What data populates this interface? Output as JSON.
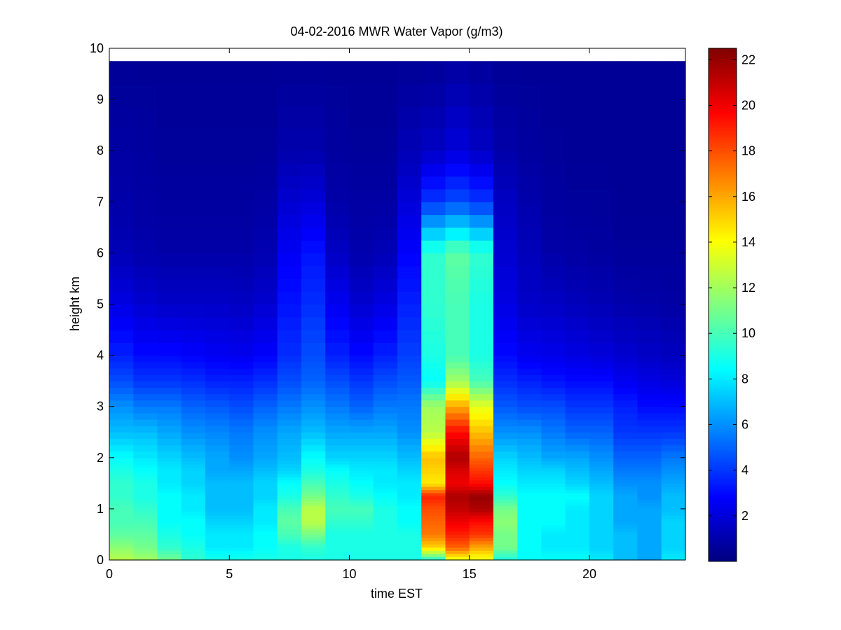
{
  "chart_data": {
    "type": "heatmap",
    "title": "04-02-2016 MWR Water Vapor (g/m3)",
    "xlabel": "time EST",
    "ylabel": "height km",
    "xlim": [
      0,
      24
    ],
    "ylim": [
      0,
      10
    ],
    "x_ticks": [
      "0",
      "5",
      "10",
      "15",
      "20"
    ],
    "x_tick_values": [
      0,
      5,
      10,
      15,
      20
    ],
    "y_ticks": [
      "0",
      "1",
      "2",
      "3",
      "4",
      "5",
      "6",
      "7",
      "8",
      "9",
      "10"
    ],
    "y_tick_values": [
      0,
      1,
      2,
      3,
      4,
      5,
      6,
      7,
      8,
      9,
      10
    ],
    "colorbar": {
      "colormap": "jet",
      "range": [
        0,
        22.5
      ],
      "ticks": [
        "2",
        "4",
        "6",
        "8",
        "10",
        "12",
        "14",
        "16",
        "18",
        "20",
        "22"
      ],
      "tick_values": [
        2,
        4,
        6,
        8,
        10,
        12,
        14,
        16,
        18,
        20,
        22
      ]
    },
    "time_columns_hours": [
      0.5,
      1.5,
      2.5,
      3.5,
      4.5,
      5.5,
      6.5,
      7.5,
      8.5,
      9.5,
      10.5,
      11.5,
      12.5,
      13.5,
      14.5,
      15.5,
      16.5,
      17.5,
      18.5,
      19.5,
      20.5,
      21.5,
      22.5,
      23.5
    ],
    "height_levels_km": [
      0,
      0.25,
      0.5,
      0.75,
      1.0,
      1.25,
      1.5,
      1.75,
      2.0,
      2.5,
      3.0,
      3.5,
      4.0,
      5.0,
      6.0,
      7.0,
      8.0,
      9.75
    ],
    "water_vapor_profiles": [
      [
        12.5,
        11.5,
        10.5,
        10.0,
        10.0,
        9.5,
        9.5,
        9.0,
        8.5,
        7.0,
        6.0,
        4.5,
        3.5,
        2.2,
        1.2,
        0.9,
        0.8,
        0.5
      ],
      [
        12.0,
        11.0,
        10.5,
        10.0,
        9.5,
        9.0,
        9.0,
        8.5,
        8.0,
        7.0,
        5.5,
        4.0,
        3.0,
        1.8,
        1.0,
        0.8,
        0.7,
        0.5
      ],
      [
        11.0,
        9.5,
        9.0,
        8.5,
        8.5,
        8.5,
        8.0,
        8.0,
        7.5,
        6.5,
        5.5,
        4.0,
        3.0,
        1.6,
        0.9,
        0.7,
        0.6,
        0.5
      ],
      [
        9.5,
        9.0,
        8.5,
        8.5,
        8.0,
        8.0,
        7.5,
        7.5,
        7.0,
        6.0,
        5.0,
        3.8,
        2.8,
        1.6,
        0.9,
        0.7,
        0.6,
        0.5
      ],
      [
        9.0,
        8.0,
        8.0,
        7.5,
        7.0,
        7.0,
        7.0,
        6.5,
        6.5,
        5.8,
        4.8,
        3.5,
        2.6,
        1.6,
        0.9,
        0.7,
        0.6,
        0.5
      ],
      [
        9.0,
        8.0,
        8.0,
        7.5,
        7.0,
        7.0,
        7.0,
        6.5,
        6.0,
        5.5,
        4.5,
        3.5,
        2.5,
        1.5,
        0.9,
        0.7,
        0.6,
        0.5
      ],
      [
        9.0,
        8.5,
        8.5,
        8.0,
        8.0,
        7.5,
        7.5,
        7.0,
        6.5,
        6.0,
        5.0,
        3.8,
        2.8,
        1.8,
        1.1,
        0.8,
        0.6,
        0.5
      ],
      [
        9.0,
        9.0,
        10.0,
        10.5,
        10.0,
        9.0,
        8.5,
        7.5,
        7.0,
        6.5,
        5.5,
        4.5,
        3.8,
        3.2,
        2.6,
        1.8,
        1.0,
        0.5
      ],
      [
        9.0,
        9.5,
        11.0,
        12.5,
        12.5,
        11.0,
        10.0,
        9.0,
        8.5,
        7.0,
        6.0,
        5.0,
        4.5,
        3.8,
        3.2,
        2.0,
        1.0,
        0.5
      ],
      [
        9.0,
        9.0,
        9.0,
        9.5,
        10.0,
        9.5,
        9.0,
        8.5,
        7.5,
        6.5,
        5.5,
        4.5,
        3.5,
        2.5,
        1.5,
        0.9,
        0.7,
        0.5
      ],
      [
        9.0,
        9.0,
        9.0,
        9.5,
        10.0,
        9.0,
        8.5,
        8.0,
        7.5,
        6.5,
        5.0,
        4.0,
        3.0,
        1.8,
        1.0,
        0.8,
        0.6,
        0.5
      ],
      [
        9.0,
        9.0,
        9.0,
        9.0,
        9.0,
        8.5,
        8.0,
        8.0,
        7.5,
        6.5,
        5.5,
        4.5,
        3.5,
        2.2,
        1.2,
        0.8,
        0.6,
        0.5
      ],
      [
        9.0,
        9.0,
        9.0,
        8.5,
        8.5,
        8.0,
        8.0,
        7.5,
        7.0,
        6.0,
        5.5,
        4.8,
        4.2,
        3.5,
        2.8,
        2.0,
        1.2,
        0.5
      ],
      [
        9.0,
        15.0,
        17.0,
        17.5,
        18.0,
        19.0,
        14.5,
        15.0,
        15.5,
        12.5,
        12.0,
        8.5,
        9.0,
        9.5,
        9.5,
        4.0,
        1.5,
        0.5
      ],
      [
        13.5,
        17.5,
        19.0,
        20.0,
        21.0,
        21.5,
        20.0,
        20.5,
        21.5,
        19.5,
        16.0,
        12.0,
        10.0,
        10.0,
        10.5,
        4.5,
        2.0,
        0.7
      ],
      [
        13.5,
        16.0,
        18.5,
        19.5,
        21.5,
        22.0,
        19.5,
        18.5,
        17.5,
        15.5,
        13.5,
        10.0,
        9.0,
        9.0,
        9.5,
        4.0,
        1.5,
        0.6
      ],
      [
        9.0,
        11.0,
        11.0,
        11.5,
        11.0,
        9.5,
        8.5,
        8.0,
        7.5,
        6.0,
        4.8,
        3.8,
        3.0,
        2.2,
        1.8,
        1.5,
        0.9,
        0.5
      ],
      [
        8.5,
        8.5,
        8.5,
        8.5,
        8.5,
        8.5,
        8.0,
        7.5,
        7.0,
        6.0,
        4.5,
        3.5,
        2.5,
        1.6,
        1.3,
        1.0,
        0.7,
        0.5
      ],
      [
        8.5,
        8.0,
        8.0,
        8.5,
        8.5,
        8.5,
        8.0,
        7.5,
        6.5,
        5.5,
        4.5,
        3.2,
        2.4,
        1.5,
        0.9,
        0.7,
        0.6,
        0.5
      ],
      [
        8.5,
        8.0,
        8.0,
        8.0,
        8.0,
        8.5,
        7.5,
        7.0,
        6.5,
        5.0,
        4.0,
        3.0,
        2.2,
        1.3,
        0.8,
        0.6,
        0.5,
        0.5
      ],
      [
        8.0,
        7.5,
        7.5,
        7.5,
        7.5,
        7.5,
        7.0,
        6.5,
        6.0,
        5.0,
        4.0,
        3.0,
        2.0,
        1.2,
        0.7,
        0.6,
        0.5,
        0.5
      ],
      [
        7.0,
        7.0,
        7.0,
        6.5,
        6.5,
        6.5,
        6.0,
        5.5,
        5.0,
        4.0,
        3.5,
        2.5,
        1.8,
        1.0,
        0.6,
        0.5,
        0.5,
        0.5
      ],
      [
        6.5,
        6.5,
        6.5,
        6.5,
        6.5,
        6.0,
        6.0,
        5.5,
        5.0,
        4.0,
        3.0,
        2.2,
        1.6,
        0.9,
        0.6,
        0.5,
        0.5,
        0.5
      ],
      [
        8.0,
        7.5,
        7.5,
        7.5,
        7.0,
        7.0,
        6.5,
        6.0,
        5.5,
        4.0,
        3.0,
        2.0,
        1.4,
        0.8,
        0.6,
        0.5,
        0.5,
        0.5
      ]
    ]
  }
}
